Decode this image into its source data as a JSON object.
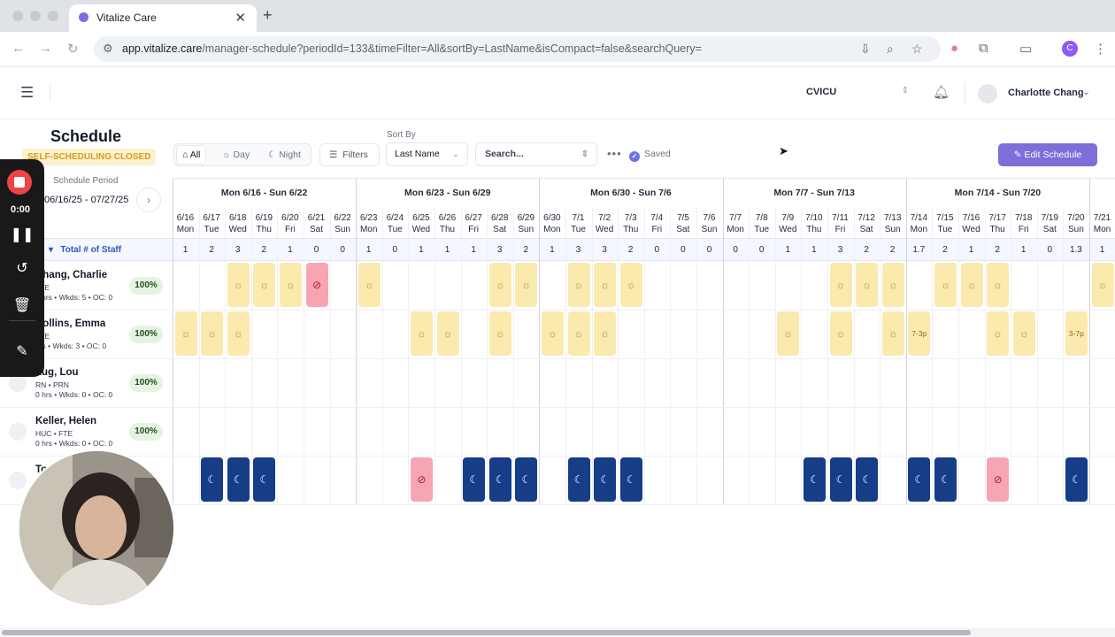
{
  "browser": {
    "tab_title": "Vitalize Care",
    "url_host": "app.vitalize.care",
    "url_path": "/manager-schedule?periodId=133&timeFilter=All&sortBy=LastName&isCompact=false&searchQuery=",
    "profile_initial": "C"
  },
  "header": {
    "unit_select": "CVICU",
    "user_name": "Charlotte Chang"
  },
  "schedule": {
    "title": "Schedule",
    "status_badge": "SELF-SCHEDULING CLOSED",
    "period_label": "Schedule Period",
    "period_value": "06/16/25 - 07/27/25",
    "filters": {
      "all": "All",
      "day": "Day",
      "night": "Night"
    },
    "filters_button": "Filters",
    "sort_label": "Sort By",
    "sort_value": "Last Name",
    "search_placeholder": "Search...",
    "saved_label": "Saved",
    "edit_button": "Edit Schedule",
    "total_label": "Total # of Staff"
  },
  "weeks": [
    "Mon 6/16 - Sun 6/22",
    "Mon 6/23 - Sun 6/29",
    "Mon 6/30 - Sun 7/6",
    "Mon 7/7 - Sun 7/13",
    "Mon 7/14 - Sun 7/20"
  ],
  "days": [
    {
      "date": "6/16",
      "dow": "Mon",
      "total": "1"
    },
    {
      "date": "6/17",
      "dow": "Tue",
      "total": "2"
    },
    {
      "date": "6/18",
      "dow": "Wed",
      "total": "3"
    },
    {
      "date": "6/19",
      "dow": "Thu",
      "total": "2"
    },
    {
      "date": "6/20",
      "dow": "Fri",
      "total": "1"
    },
    {
      "date": "6/21",
      "dow": "Sat",
      "total": "0"
    },
    {
      "date": "6/22",
      "dow": "Sun",
      "total": "0"
    },
    {
      "date": "6/23",
      "dow": "Mon",
      "total": "1"
    },
    {
      "date": "6/24",
      "dow": "Tue",
      "total": "0"
    },
    {
      "date": "6/25",
      "dow": "Wed",
      "total": "1"
    },
    {
      "date": "6/26",
      "dow": "Thu",
      "total": "1"
    },
    {
      "date": "6/27",
      "dow": "Fri",
      "total": "1"
    },
    {
      "date": "6/28",
      "dow": "Sat",
      "total": "3"
    },
    {
      "date": "6/29",
      "dow": "Sun",
      "total": "2"
    },
    {
      "date": "6/30",
      "dow": "Mon",
      "total": "1"
    },
    {
      "date": "7/1",
      "dow": "Tue",
      "total": "3"
    },
    {
      "date": "7/2",
      "dow": "Wed",
      "total": "3"
    },
    {
      "date": "7/3",
      "dow": "Thu",
      "total": "2"
    },
    {
      "date": "7/4",
      "dow": "Fri",
      "total": "0"
    },
    {
      "date": "7/5",
      "dow": "Sat",
      "total": "0"
    },
    {
      "date": "7/6",
      "dow": "Sun",
      "total": "0"
    },
    {
      "date": "7/7",
      "dow": "Mon",
      "total": "0"
    },
    {
      "date": "7/8",
      "dow": "Tue",
      "total": "0"
    },
    {
      "date": "7/9",
      "dow": "Wed",
      "total": "1"
    },
    {
      "date": "7/10",
      "dow": "Thu",
      "total": "1"
    },
    {
      "date": "7/11",
      "dow": "Fri",
      "total": "3"
    },
    {
      "date": "7/12",
      "dow": "Sat",
      "total": "2"
    },
    {
      "date": "7/13",
      "dow": "Sun",
      "total": "2"
    },
    {
      "date": "7/14",
      "dow": "Mon",
      "total": "1.7"
    },
    {
      "date": "7/15",
      "dow": "Tue",
      "total": "2"
    },
    {
      "date": "7/16",
      "dow": "Wed",
      "total": "1"
    },
    {
      "date": "7/17",
      "dow": "Thu",
      "total": "2"
    },
    {
      "date": "7/18",
      "dow": "Fri",
      "total": "1"
    },
    {
      "date": "7/19",
      "dow": "Sat",
      "total": "0"
    },
    {
      "date": "7/20",
      "dow": "Sun",
      "total": "1.3"
    },
    {
      "date": "7/21",
      "dow": "Mon",
      "total": "1"
    }
  ],
  "staff": [
    {
      "name": "Chang, Charlie",
      "role": "FTE",
      "stats": "6 hrs • Wkds: 5 • OC: 0",
      "percent": "100%",
      "shifts": [
        [
          2,
          "day"
        ],
        [
          3,
          "day"
        ],
        [
          4,
          "day"
        ],
        [
          5,
          "off"
        ],
        [
          7,
          "day"
        ],
        [
          12,
          "day"
        ],
        [
          13,
          "day"
        ],
        [
          15,
          "day"
        ],
        [
          16,
          "day"
        ],
        [
          17,
          "day"
        ],
        [
          25,
          "day"
        ],
        [
          26,
          "day"
        ],
        [
          27,
          "day"
        ],
        [
          29,
          "day"
        ],
        [
          30,
          "day"
        ],
        [
          31,
          "day"
        ],
        [
          35,
          "day"
        ]
      ]
    },
    {
      "name": "Collins, Emma",
      "role": "FTE",
      "stats": "hrs • Wkds: 3 • OC: 0",
      "percent": "100%",
      "shifts": [
        [
          0,
          "day"
        ],
        [
          1,
          "day"
        ],
        [
          2,
          "day"
        ],
        [
          9,
          "day"
        ],
        [
          10,
          "day"
        ],
        [
          12,
          "day"
        ],
        [
          14,
          "day"
        ],
        [
          15,
          "day"
        ],
        [
          16,
          "day"
        ],
        [
          23,
          "day"
        ],
        [
          25,
          "day"
        ],
        [
          27,
          "day"
        ],
        [
          28,
          "7-3p"
        ],
        [
          31,
          "day"
        ],
        [
          32,
          "day"
        ],
        [
          34,
          "3-7p"
        ]
      ]
    },
    {
      "name": "Lug, Lou",
      "role": "RN • PRN",
      "stats": "0 hrs • Wkds: 0 • OC: 0",
      "percent": "100%",
      "shifts": []
    },
    {
      "name": "Keller, Helen",
      "role": "HUC • FTE",
      "stats": "0 hrs • Wkds: 0 • OC: 0",
      "percent": "100%",
      "shifts": []
    },
    {
      "name": "To",
      "role": "",
      "stats": "",
      "percent": "",
      "shifts": [
        [
          1,
          "night"
        ],
        [
          2,
          "night"
        ],
        [
          3,
          "night"
        ],
        [
          9,
          "off"
        ],
        [
          11,
          "night"
        ],
        [
          12,
          "night"
        ],
        [
          13,
          "night"
        ],
        [
          15,
          "night"
        ],
        [
          16,
          "night"
        ],
        [
          17,
          "night"
        ],
        [
          24,
          "night"
        ],
        [
          25,
          "night"
        ],
        [
          26,
          "night"
        ],
        [
          28,
          "night"
        ],
        [
          29,
          "night"
        ],
        [
          31,
          "off"
        ],
        [
          34,
          "night"
        ]
      ]
    }
  ],
  "recorder": {
    "time": "0:00"
  },
  "icons": {
    "day": "sun-icon",
    "night": "moon-icon",
    "off": "no-entry-icon"
  }
}
